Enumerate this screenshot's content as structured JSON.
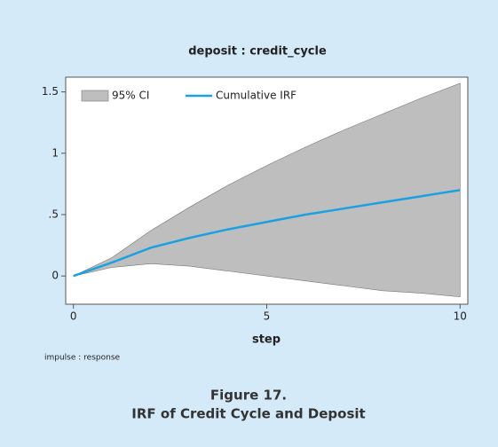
{
  "chart_data": {
    "type": "line",
    "title": "deposit : credit_cycle",
    "x_label": "step",
    "note": "impulse : response",
    "caption": {
      "figure": "Figure 17.",
      "text": "IRF of Credit Cycle and Deposit"
    },
    "x": [
      0,
      1,
      2,
      3,
      4,
      5,
      6,
      7,
      8,
      9,
      10
    ],
    "series": [
      {
        "name": "95% CI",
        "color": "#bebebe",
        "upper": [
          0,
          0.15,
          0.37,
          0.56,
          0.74,
          0.9,
          1.05,
          1.19,
          1.32,
          1.45,
          1.57
        ],
        "lower": [
          0,
          0.07,
          0.1,
          0.08,
          0.04,
          0.0,
          -0.04,
          -0.08,
          -0.12,
          -0.14,
          -0.17
        ]
      },
      {
        "name": "Cumulative IRF",
        "color": "#1ba1e2",
        "values": [
          0,
          0.11,
          0.23,
          0.31,
          0.38,
          0.44,
          0.5,
          0.55,
          0.6,
          0.65,
          0.7
        ]
      }
    ],
    "xlim": [
      -0.2,
      10.2
    ],
    "xticks": [
      0,
      5,
      10
    ],
    "ylim": [
      -0.23,
      1.62
    ],
    "yticks": [
      0,
      {
        "value": 0.5,
        "label": ".5"
      },
      1,
      1.5
    ],
    "legend": "top-left"
  }
}
